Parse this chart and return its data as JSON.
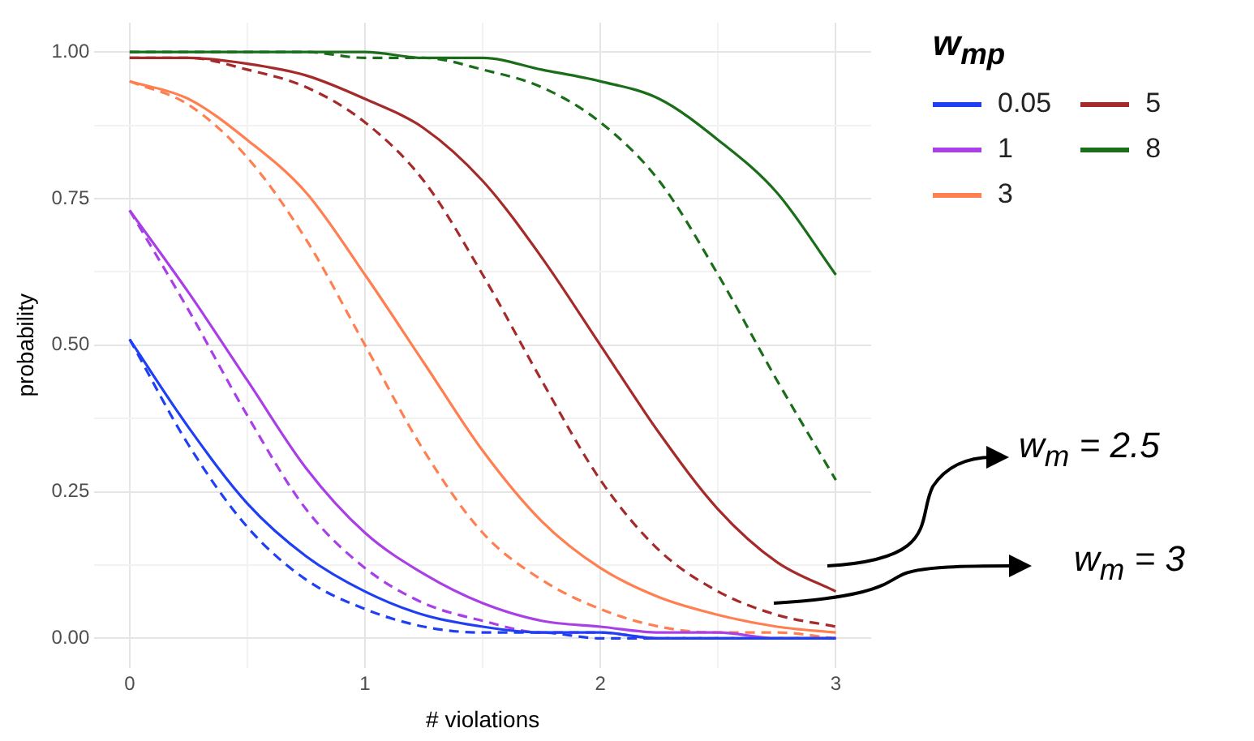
{
  "chart_data": {
    "type": "line",
    "xlabel": "# violations",
    "ylabel": "probability",
    "legend_title": "w$_{mp}$",
    "legend": "top right",
    "grid": true,
    "marker": "none",
    "x": [
      0,
      0.25,
      0.5,
      0.75,
      1,
      1.25,
      1.5,
      1.75,
      2,
      2.25,
      2.5,
      2.75,
      3
    ],
    "xlim": [
      -0.15,
      3.15
    ],
    "ylim": [
      -0.05,
      1.05
    ],
    "xticks": [
      0,
      {
        "value": 0.5,
        "label": null
      },
      1,
      {
        "value": 1.5,
        "label": null
      },
      2,
      {
        "value": 2.5,
        "label": null
      },
      3
    ],
    "yticks": [
      {
        "value": 0,
        "label": "0.00"
      },
      {
        "value": 0.125,
        "label": null
      },
      {
        "value": 0.25,
        "label": "0.25"
      },
      {
        "value": 0.375,
        "label": null
      },
      {
        "value": 0.5,
        "label": "0.50"
      },
      {
        "value": 0.625,
        "label": null
      },
      {
        "value": 0.75,
        "label": "0.75"
      },
      {
        "value": 0.875,
        "label": null
      },
      {
        "value": 1,
        "label": "1.00"
      }
    ],
    "series": [
      {
        "name": "0.05",
        "color": "#1f3ff5",
        "line_style": "solid",
        "values": [
          0.51,
          0.36,
          0.23,
          0.14,
          0.08,
          0.04,
          0.02,
          0.01,
          0.01,
          0.0,
          0.0,
          0.0,
          0.0
        ]
      },
      {
        "name": "1",
        "color": "#a93fe6",
        "line_style": "solid",
        "values": [
          0.73,
          0.59,
          0.44,
          0.29,
          0.18,
          0.11,
          0.06,
          0.03,
          0.02,
          0.01,
          0.01,
          0.0,
          0.0
        ]
      },
      {
        "name": "3",
        "color": "#ff7f50",
        "line_style": "solid",
        "values": [
          0.95,
          0.92,
          0.85,
          0.76,
          0.62,
          0.47,
          0.32,
          0.2,
          0.12,
          0.07,
          0.04,
          0.02,
          0.01
        ]
      },
      {
        "name": "5",
        "color": "#a52a2a",
        "line_style": "solid",
        "values": [
          0.99,
          0.99,
          0.98,
          0.96,
          0.92,
          0.87,
          0.78,
          0.65,
          0.5,
          0.35,
          0.22,
          0.13,
          0.08
        ]
      },
      {
        "name": "8",
        "color": "#1a6e1a",
        "line_style": "solid",
        "values": [
          1.0,
          1.0,
          1.0,
          1.0,
          1.0,
          0.99,
          0.99,
          0.97,
          0.95,
          0.92,
          0.85,
          0.76,
          0.62
        ]
      },
      {
        "color": "#1f3ff5",
        "line_style": "dashed",
        "values": [
          0.51,
          0.33,
          0.19,
          0.1,
          0.05,
          0.02,
          0.01,
          0.01,
          0.0,
          0.0,
          0.0,
          0.0,
          0.0
        ]
      },
      {
        "color": "#a93fe6",
        "line_style": "dashed",
        "values": [
          0.73,
          0.56,
          0.38,
          0.22,
          0.12,
          0.06,
          0.03,
          0.01,
          0.01,
          0.0,
          0.0,
          0.0,
          0.0
        ]
      },
      {
        "color": "#ff7f50",
        "line_style": "dashed",
        "values": [
          0.95,
          0.91,
          0.82,
          0.68,
          0.5,
          0.32,
          0.18,
          0.1,
          0.05,
          0.02,
          0.01,
          0.01,
          0.0
        ]
      },
      {
        "color": "#a52a2a",
        "line_style": "dashed",
        "values": [
          0.99,
          0.99,
          0.97,
          0.94,
          0.88,
          0.78,
          0.62,
          0.44,
          0.27,
          0.15,
          0.08,
          0.04,
          0.02
        ]
      },
      {
        "color": "#1a6e1a",
        "line_style": "dashed",
        "values": [
          1.0,
          1.0,
          1.0,
          1.0,
          0.99,
          0.99,
          0.97,
          0.94,
          0.88,
          0.78,
          0.62,
          0.44,
          0.27
        ]
      }
    ],
    "annotations": [
      "w$_{m}$ = 2.5",
      "w$_{m}$ = 3"
    ]
  }
}
